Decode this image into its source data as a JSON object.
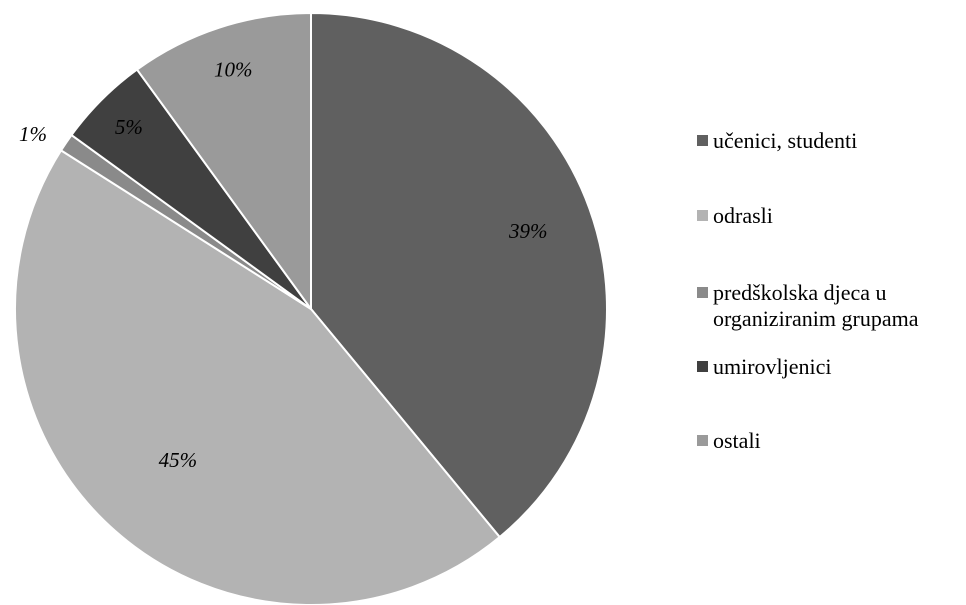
{
  "chart_data": {
    "type": "pie",
    "start_angle_deg": 0,
    "direction": "clockwise",
    "slices": [
      {
        "name": "učenici, studenti",
        "value": 39,
        "label": "39%",
        "color": "#606060"
      },
      {
        "name": "odrasli",
        "value": 45,
        "label": "45%",
        "color": "#b3b3b3"
      },
      {
        "name": "predškolska djeca u organiziranim grupama",
        "value": 1,
        "label": "1%",
        "color": "#8a8a8a"
      },
      {
        "name": "umirovljenici",
        "value": 5,
        "label": "5%",
        "color": "#404040"
      },
      {
        "name": "ostali",
        "value": 10,
        "label": "10%",
        "color": "#9a9a9a"
      }
    ],
    "legend": {
      "placement": "right",
      "items": [
        "učenici, studenti",
        "odrasli",
        "predškolska djeca u organiziranim grupama",
        "umirovljenici",
        "ostali"
      ]
    }
  }
}
